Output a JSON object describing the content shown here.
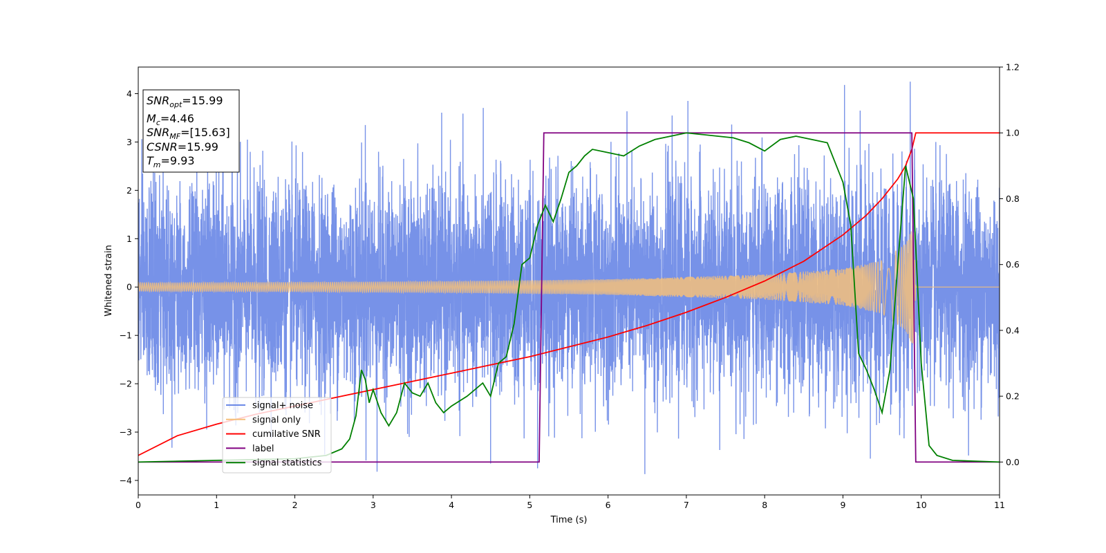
{
  "chart_data": {
    "type": "line",
    "xlabel": "Time (s)",
    "ylabel": "Whitened strain",
    "xlim": [
      0,
      11
    ],
    "ylim_left": [
      -4.3,
      4.55
    ],
    "ylim_right": [
      -0.1,
      1.2
    ],
    "x_ticks": [
      "0",
      "1",
      "2",
      "3",
      "4",
      "5",
      "6",
      "7",
      "8",
      "9",
      "10",
      "11"
    ],
    "y_ticks_left": [
      "−4",
      "−3",
      "−2",
      "−1",
      "0",
      "1",
      "2",
      "3",
      "4"
    ],
    "y_ticks_right": [
      "0.0",
      "0.2",
      "0.4",
      "0.6",
      "0.8",
      "1.0",
      "1.2"
    ],
    "legend_position": "lower-left",
    "annotation": {
      "lines": [
        {
          "base": "SNR",
          "sub": "opt",
          "value": "=15.99"
        },
        {
          "base": "M",
          "sub": "c",
          "value": "=4.46"
        },
        {
          "base": "SNR",
          "sub": "MF",
          "value": "=[15.63]"
        },
        {
          "base": "CSNR",
          "sub": "",
          "value": "=15.99"
        },
        {
          "base": "T",
          "sub": "m",
          "value": "=9.93"
        }
      ]
    },
    "series": [
      {
        "name": "signal+ noise",
        "axis": "left",
        "color": "#6b89e6",
        "description": "whitened noise, amplitude roughly ±2.5 with spikes to ±4",
        "peak_values": {
          "max": 4.18,
          "min": -3.87
        }
      },
      {
        "name": "signal only",
        "axis": "left",
        "color": "#f5bf7a",
        "envelope": {
          "x": [
            0,
            2,
            4,
            6,
            8,
            9,
            9.5,
            9.8,
            9.9,
            9.93,
            11
          ],
          "amp": [
            0.09,
            0.1,
            0.12,
            0.16,
            0.26,
            0.38,
            0.55,
            0.9,
            1.25,
            0.0,
            0.0
          ]
        }
      },
      {
        "name": "cumilative SNR",
        "axis": "right",
        "color": "#ff0000",
        "x": [
          0,
          0.5,
          1,
          1.5,
          2,
          2.5,
          3,
          3.5,
          4,
          4.5,
          5,
          5.5,
          6,
          6.5,
          7,
          7.5,
          8,
          8.5,
          9,
          9.3,
          9.5,
          9.7,
          9.8,
          9.88,
          9.93,
          11
        ],
        "y": [
          0.02,
          0.08,
          0.115,
          0.145,
          0.17,
          0.195,
          0.22,
          0.245,
          0.27,
          0.295,
          0.32,
          0.35,
          0.38,
          0.415,
          0.455,
          0.5,
          0.55,
          0.61,
          0.69,
          0.75,
          0.8,
          0.86,
          0.9,
          0.95,
          1.0,
          1.0
        ]
      },
      {
        "name": "label",
        "axis": "right",
        "color": "#800080",
        "x": [
          0,
          5.12,
          5.18,
          9.88,
          9.93,
          11
        ],
        "y": [
          0.0,
          0.0,
          1.0,
          1.0,
          0.0,
          0.0
        ]
      },
      {
        "name": "signal statistics",
        "axis": "right",
        "color": "#008000",
        "x": [
          0,
          1,
          2,
          2.4,
          2.6,
          2.7,
          2.78,
          2.85,
          2.9,
          2.95,
          3,
          3.1,
          3.2,
          3.3,
          3.4,
          3.5,
          3.6,
          3.7,
          3.8,
          3.9,
          4,
          4.2,
          4.4,
          4.5,
          4.6,
          4.7,
          4.8,
          4.9,
          5,
          5.1,
          5.2,
          5.3,
          5.4,
          5.5,
          5.6,
          5.7,
          5.8,
          6,
          6.2,
          6.4,
          6.6,
          6.8,
          7,
          7.2,
          7.4,
          7.6,
          7.8,
          8,
          8.2,
          8.4,
          8.6,
          8.8,
          9,
          9.1,
          9.2,
          9.3,
          9.4,
          9.5,
          9.6,
          9.7,
          9.8,
          9.9,
          10,
          10.1,
          10.2,
          10.4,
          11
        ],
        "y": [
          0.0,
          0.005,
          0.01,
          0.02,
          0.04,
          0.07,
          0.14,
          0.28,
          0.25,
          0.18,
          0.22,
          0.15,
          0.11,
          0.15,
          0.24,
          0.21,
          0.2,
          0.24,
          0.18,
          0.15,
          0.17,
          0.2,
          0.24,
          0.2,
          0.3,
          0.32,
          0.42,
          0.6,
          0.62,
          0.72,
          0.78,
          0.73,
          0.8,
          0.88,
          0.9,
          0.93,
          0.95,
          0.94,
          0.93,
          0.96,
          0.98,
          0.99,
          1.0,
          0.995,
          0.99,
          0.985,
          0.97,
          0.945,
          0.98,
          0.99,
          0.98,
          0.97,
          0.85,
          0.72,
          0.33,
          0.28,
          0.22,
          0.15,
          0.28,
          0.6,
          0.9,
          0.8,
          0.3,
          0.05,
          0.02,
          0.005,
          0.0
        ]
      }
    ]
  }
}
